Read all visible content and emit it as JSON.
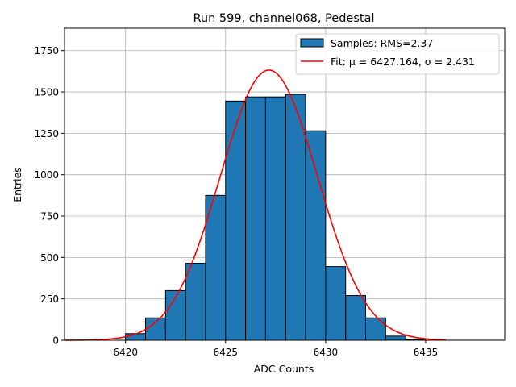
{
  "chart_data": {
    "type": "bar",
    "title": "Run 599, channel068, Pedestal",
    "xlabel": "ADC Counts",
    "ylabel": "Entries",
    "xlim": [
      6416.95,
      6438.95
    ],
    "ylim": [
      0,
      1885
    ],
    "grid": true,
    "legend_position": "top-right",
    "x_ticks": [
      6420,
      6425,
      6430,
      6435
    ],
    "y_ticks": [
      0,
      250,
      500,
      750,
      1000,
      1250,
      1500,
      1750
    ],
    "bins": [
      {
        "x0": 6420,
        "x1": 6421,
        "value": 40
      },
      {
        "x0": 6421,
        "x1": 6422,
        "value": 135
      },
      {
        "x0": 6422,
        "x1": 6423,
        "value": 300
      },
      {
        "x0": 6423,
        "x1": 6424,
        "value": 465
      },
      {
        "x0": 6424,
        "x1": 6425,
        "value": 875
      },
      {
        "x0": 6425,
        "x1": 6426,
        "value": 1445
      },
      {
        "x0": 6426,
        "x1": 6427,
        "value": 1470
      },
      {
        "x0": 6427,
        "x1": 6428,
        "value": 1470
      },
      {
        "x0": 6428,
        "x1": 6429,
        "value": 1485
      },
      {
        "x0": 6429,
        "x1": 6430,
        "value": 1265
      },
      {
        "x0": 6430,
        "x1": 6431,
        "value": 445
      },
      {
        "x0": 6431,
        "x1": 6432,
        "value": 270
      },
      {
        "x0": 6432,
        "x1": 6433,
        "value": 135
      },
      {
        "x0": 6433,
        "x1": 6434,
        "value": 25
      },
      {
        "x0": 6434,
        "x1": 6435,
        "value": 5
      }
    ],
    "series": [
      {
        "name": "Samples: RMS=2.37",
        "kind": "histogram",
        "color": "#1f77b4"
      },
      {
        "name": "Fit: μ = 6427.164, σ = 2.431",
        "kind": "line",
        "color": "#ff0000",
        "mu": 6427.164,
        "sigma": 2.431,
        "amplitude": 1632,
        "x_range": [
          6417,
          6436
        ]
      }
    ]
  }
}
